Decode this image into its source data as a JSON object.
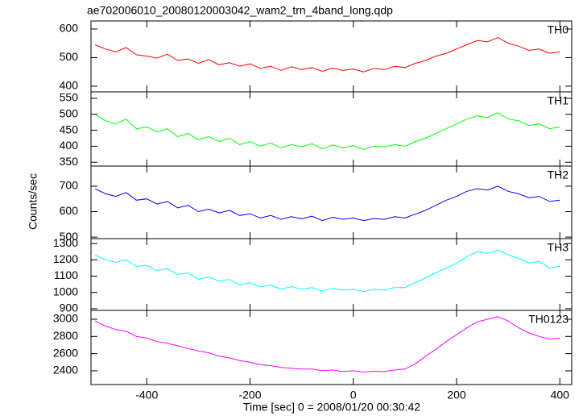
{
  "chart_data": [
    {
      "type": "line",
      "title": "ae702006010_20080120003042_wam2_trn_4band_long.qdp",
      "x": [
        -500,
        -480,
        -460,
        -440,
        -420,
        -400,
        -380,
        -360,
        -340,
        -320,
        -300,
        -280,
        -260,
        -240,
        -220,
        -200,
        -180,
        -160,
        -140,
        -120,
        -100,
        -80,
        -60,
        -40,
        -20,
        0,
        20,
        40,
        60,
        80,
        100,
        120,
        140,
        160,
        180,
        200,
        220,
        240,
        260,
        280,
        300,
        320,
        340,
        360,
        380,
        400
      ],
      "series": [
        {
          "name": "TH0",
          "color": "#ff0000",
          "values": [
            545,
            530,
            520,
            535,
            510,
            505,
            498,
            512,
            490,
            495,
            480,
            493,
            475,
            482,
            470,
            478,
            462,
            470,
            455,
            468,
            458,
            465,
            452,
            463,
            455,
            460,
            450,
            462,
            458,
            470,
            465,
            480,
            490,
            505,
            515,
            530,
            545,
            560,
            555,
            570,
            550,
            540,
            525,
            530,
            515,
            520
          ]
        }
      ],
      "xlim": [
        -508,
        423
      ],
      "ylim": [
        380,
        628
      ],
      "yticks": [
        400,
        500,
        600
      ]
    },
    {
      "type": "line",
      "x": [
        -500,
        -480,
        -460,
        -440,
        -420,
        -400,
        -380,
        -360,
        -340,
        -320,
        -300,
        -280,
        -260,
        -240,
        -220,
        -200,
        -180,
        -160,
        -140,
        -120,
        -100,
        -80,
        -60,
        -40,
        -20,
        0,
        20,
        40,
        60,
        80,
        100,
        120,
        140,
        160,
        180,
        200,
        220,
        240,
        260,
        280,
        300,
        320,
        340,
        360,
        380,
        400
      ],
      "series": [
        {
          "name": "TH1",
          "color": "#00ff00",
          "values": [
            500,
            480,
            470,
            485,
            455,
            460,
            445,
            455,
            430,
            440,
            420,
            430,
            415,
            425,
            405,
            415,
            400,
            410,
            395,
            405,
            398,
            408,
            392,
            404,
            395,
            402,
            390,
            400,
            398,
            405,
            400,
            415,
            425,
            440,
            455,
            470,
            485,
            495,
            490,
            505,
            485,
            480,
            465,
            470,
            455,
            460
          ]
        }
      ],
      "xlim": [
        -508,
        423
      ],
      "ylim": [
        338,
        570
      ],
      "yticks": [
        350,
        400,
        450,
        500,
        550
      ]
    },
    {
      "type": "line",
      "y_label": "Counts/sec",
      "x": [
        -500,
        -480,
        -460,
        -440,
        -420,
        -400,
        -380,
        -360,
        -340,
        -320,
        -300,
        -280,
        -260,
        -240,
        -220,
        -200,
        -180,
        -160,
        -140,
        -120,
        -100,
        -80,
        -60,
        -40,
        -20,
        0,
        20,
        40,
        60,
        80,
        100,
        120,
        140,
        160,
        180,
        200,
        220,
        240,
        260,
        280,
        300,
        320,
        340,
        360,
        380,
        400
      ],
      "series": [
        {
          "name": "TH2",
          "color": "#0000ff",
          "values": [
            690,
            670,
            660,
            675,
            645,
            650,
            630,
            640,
            615,
            625,
            600,
            610,
            595,
            605,
            585,
            592,
            575,
            585,
            570,
            580,
            572,
            582,
            565,
            578,
            570,
            575,
            565,
            573,
            570,
            580,
            575,
            590,
            605,
            625,
            645,
            660,
            680,
            690,
            685,
            700,
            680,
            670,
            655,
            660,
            640,
            645
          ]
        }
      ],
      "xlim": [
        -508,
        423
      ],
      "ylim": [
        494,
        779
      ],
      "yticks": [
        500,
        600,
        700
      ]
    },
    {
      "type": "line",
      "x": [
        -500,
        -480,
        -460,
        -440,
        -420,
        -400,
        -380,
        -360,
        -340,
        -320,
        -300,
        -280,
        -260,
        -240,
        -220,
        -200,
        -180,
        -160,
        -140,
        -120,
        -100,
        -80,
        -60,
        -40,
        -20,
        0,
        20,
        40,
        60,
        80,
        100,
        120,
        140,
        160,
        180,
        200,
        220,
        240,
        260,
        280,
        300,
        320,
        340,
        360,
        380,
        400
      ],
      "series": [
        {
          "name": "TH3",
          "color": "#00ffff",
          "values": [
            1230,
            1200,
            1185,
            1200,
            1160,
            1165,
            1135,
            1145,
            1110,
            1120,
            1080,
            1095,
            1070,
            1080,
            1045,
            1060,
            1035,
            1045,
            1020,
            1035,
            1020,
            1030,
            1010,
            1025,
            1015,
            1020,
            1005,
            1020,
            1015,
            1030,
            1030,
            1060,
            1090,
            1120,
            1150,
            1180,
            1220,
            1250,
            1240,
            1260,
            1230,
            1210,
            1180,
            1190,
            1150,
            1160
          ]
        }
      ],
      "xlim": [
        -508,
        423
      ],
      "ylim": [
        890,
        1330
      ],
      "yticks": [
        900,
        1000,
        1100,
        1200,
        1300
      ]
    },
    {
      "type": "line",
      "x_label": "Time [sec] 0 = 2008/01/20 00:30:42",
      "x": [
        -500,
        -480,
        -460,
        -440,
        -420,
        -400,
        -380,
        -360,
        -340,
        -320,
        -300,
        -280,
        -260,
        -240,
        -220,
        -200,
        -180,
        -160,
        -140,
        -120,
        -100,
        -80,
        -60,
        -40,
        -20,
        0,
        20,
        40,
        60,
        80,
        100,
        120,
        140,
        160,
        180,
        200,
        220,
        240,
        260,
        280,
        300,
        320,
        340,
        360,
        380,
        400
      ],
      "series": [
        {
          "name": "TH0123",
          "color": "#ff00ff",
          "values": [
            2980,
            2920,
            2880,
            2860,
            2800,
            2780,
            2740,
            2720,
            2690,
            2660,
            2630,
            2610,
            2570,
            2550,
            2520,
            2500,
            2470,
            2460,
            2440,
            2430,
            2420,
            2420,
            2400,
            2410,
            2390,
            2400,
            2385,
            2395,
            2390,
            2410,
            2420,
            2480,
            2570,
            2650,
            2740,
            2820,
            2900,
            2970,
            3000,
            3030,
            2980,
            2900,
            2840,
            2800,
            2770,
            2780
          ]
        }
      ],
      "xlim": [
        -508,
        423
      ],
      "xticks": [
        -400,
        -200,
        0,
        200,
        400
      ],
      "ylim": [
        2240,
        3103
      ],
      "yticks": [
        2400,
        2600,
        2800,
        3000
      ]
    }
  ]
}
